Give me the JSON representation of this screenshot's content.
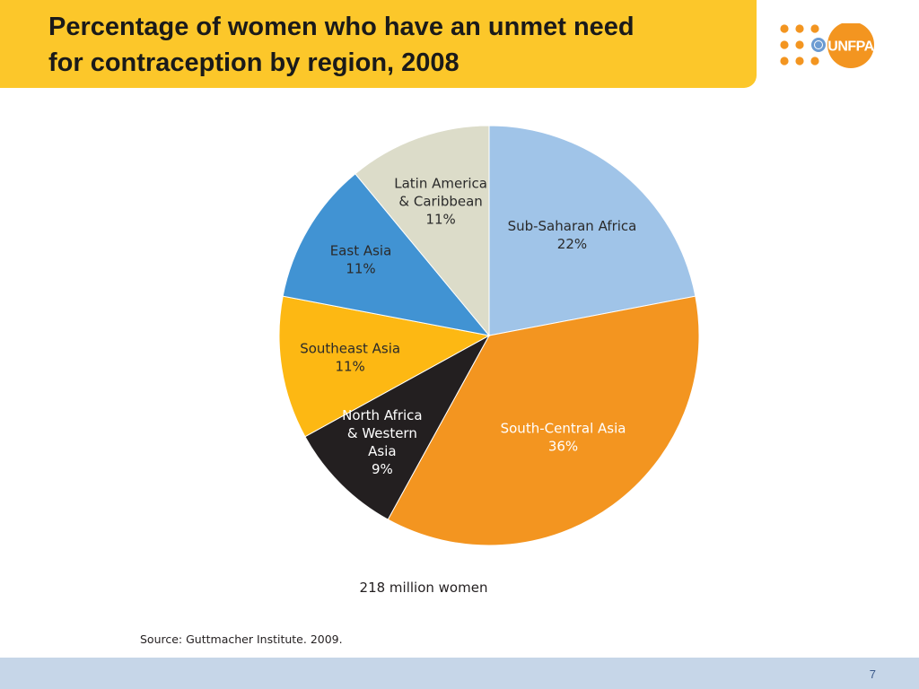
{
  "slide": {
    "title": "Percentage of women who have an unmet need\nfor contraception by region, 2008",
    "page_number": "7",
    "logo_text": "UNFPA"
  },
  "chart_data": {
    "type": "pie",
    "title": "",
    "total_label": "218 million women",
    "source": "Source: Guttmacher Institute. 2009.",
    "slices": [
      {
        "label": [
          "Sub-Saharan Africa",
          "22%"
        ],
        "value": 22,
        "color": "#a0c4e8",
        "text_color": "#2a2a2a"
      },
      {
        "label": [
          "South-Central Asia",
          "36%"
        ],
        "value": 36,
        "color": "#f39520",
        "text_color": "#ffffff"
      },
      {
        "label": [
          "North Africa",
          "& Western",
          "Asia",
          "9%"
        ],
        "value": 9,
        "color": "#231f20",
        "text_color": "#ffffff"
      },
      {
        "label": [
          "Southeast Asia",
          "11%"
        ],
        "value": 11,
        "color": "#fdb813",
        "text_color": "#2a2a2a"
      },
      {
        "label": [
          "East Asia",
          "11%"
        ],
        "value": 11,
        "color": "#4193d3",
        "text_color": "#2a2a2a"
      },
      {
        "label": [
          "Latin America",
          "& Caribbean",
          "11%"
        ],
        "value": 11,
        "color": "#dcdcc9",
        "text_color": "#2a2a2a"
      }
    ]
  },
  "colors": {
    "title_bar": "#fcc72a",
    "footer_band": "#c6d6e8",
    "logo_dots": "#f39520"
  }
}
